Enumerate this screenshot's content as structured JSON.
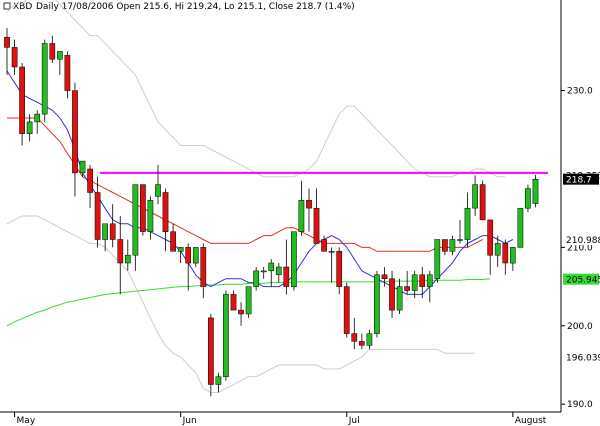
{
  "header": {
    "symbol": "XBD",
    "info": "Daily 17/08/2006 Open 215.6, Hi 219.24, Lo 215.1, Close 218.7 (1.4%)"
  },
  "colors": {
    "up": "#22bb22",
    "down": "#dd1111",
    "ma_fast": "#3333cc",
    "ma_mid": "#dd3322",
    "ma_slow": "#33dd33",
    "band": "#c8c8c8",
    "resistance": "#ff00ff"
  },
  "chart_data": {
    "type": "candlestick",
    "y_axis": {
      "min": 189,
      "max": 239,
      "ticks": [
        "190.0",
        "200.0",
        "210.0",
        "230.0"
      ],
      "tick_values": [
        190,
        200,
        210,
        230
      ],
      "side": "right"
    },
    "x_axis": {
      "labels": [
        "May",
        "Jun",
        "Jul",
        "August"
      ],
      "label_index": [
        1,
        23,
        45,
        67
      ]
    },
    "candles": [
      [
        236.8,
        238,
        232,
        235.5
      ],
      [
        235.5,
        236.5,
        232,
        233
      ],
      [
        233,
        233.5,
        223,
        224.5
      ],
      [
        224.5,
        227,
        223.5,
        226
      ],
      [
        226,
        227.5,
        224.5,
        227
      ],
      [
        227,
        236.5,
        226,
        236
      ],
      [
        236,
        237,
        233.5,
        234
      ],
      [
        234,
        235,
        232,
        235
      ],
      [
        234.5,
        235,
        229,
        230
      ],
      [
        230,
        231,
        216.5,
        219.5
      ],
      [
        219.5,
        221,
        219,
        221
      ],
      [
        220,
        220.5,
        215,
        217
      ],
      [
        217,
        219,
        210,
        211
      ],
      [
        211,
        213,
        209.5,
        213
      ],
      [
        213,
        215.5,
        210,
        211
      ],
      [
        211,
        214,
        204,
        208
      ],
      [
        208,
        211,
        207,
        209
      ],
      [
        209,
        218,
        207,
        218
      ],
      [
        218,
        218,
        211.5,
        212
      ],
      [
        212,
        216.5,
        211,
        216
      ],
      [
        216.5,
        220.5,
        215.5,
        218
      ],
      [
        217,
        217.5,
        209.5,
        212
      ],
      [
        212,
        213,
        210,
        209.5
      ],
      [
        209.5,
        210,
        208,
        210
      ],
      [
        210,
        210.5,
        204.5,
        208
      ],
      [
        208,
        210,
        207.5,
        210
      ],
      [
        210,
        210.5,
        203.5,
        205
      ],
      [
        201,
        201.5,
        191,
        192.5
      ],
      [
        192.5,
        194,
        191.5,
        193.5
      ],
      [
        193.5,
        204.5,
        193,
        204
      ],
      [
        204,
        204.5,
        202,
        202
      ],
      [
        202,
        203,
        200,
        201.5
      ],
      [
        201.5,
        205,
        201,
        205
      ],
      [
        205,
        207.5,
        204.5,
        207
      ],
      [
        207,
        207.5,
        206,
        207
      ],
      [
        207,
        208.5,
        205,
        208
      ],
      [
        206.5,
        208,
        205.5,
        207.5
      ],
      [
        207.5,
        211,
        204,
        205
      ],
      [
        205,
        212,
        204.5,
        212
      ],
      [
        212,
        218.5,
        211.5,
        216
      ],
      [
        216,
        217.5,
        212,
        215
      ],
      [
        215,
        217.5,
        210.5,
        210.5
      ],
      [
        211,
        211.5,
        209.5,
        209.5
      ],
      [
        209.5,
        210,
        205.5,
        209.5
      ],
      [
        209.5,
        210,
        204,
        205
      ],
      [
        205,
        205.5,
        198.5,
        199
      ],
      [
        199,
        201,
        197,
        198
      ],
      [
        198,
        199,
        197,
        197.5
      ],
      [
        197.5,
        199.5,
        197,
        199
      ],
      [
        199,
        207,
        198.5,
        206.5
      ],
      [
        206.5,
        207.5,
        205,
        206
      ],
      [
        206,
        207,
        201,
        202
      ],
      [
        202,
        206,
        201.5,
        205
      ],
      [
        205,
        207,
        204,
        204.5
      ],
      [
        204.5,
        207,
        203.5,
        206.5
      ],
      [
        206.5,
        207.5,
        203.5,
        205
      ],
      [
        205,
        207,
        203,
        206.5
      ],
      [
        206,
        211,
        205.5,
        211
      ],
      [
        211,
        211,
        209,
        209.5
      ],
      [
        209.5,
        211.5,
        209,
        211
      ],
      [
        211,
        213.5,
        210.5,
        211
      ],
      [
        211,
        217,
        210,
        215
      ],
      [
        215,
        219.2,
        214,
        218
      ],
      [
        218,
        218.5,
        214,
        213.5
      ],
      [
        213.5,
        213.5,
        206.5,
        209
      ],
      [
        209,
        211.5,
        207.5,
        210.5
      ],
      [
        210.5,
        211,
        206.5,
        208
      ],
      [
        208,
        210,
        207,
        210
      ],
      [
        210,
        215,
        210,
        215
      ],
      [
        215,
        218,
        214.5,
        217.5
      ],
      [
        215.6,
        219.24,
        215.1,
        218.7
      ]
    ],
    "ma_fast": [
      232.5,
      231,
      229.5,
      229,
      228.5,
      228,
      227.5,
      226.5,
      225,
      222.5,
      219.5,
      218,
      216.5,
      215,
      213.5,
      213,
      213,
      212.5,
      212.5,
      212,
      211.5,
      211,
      210.5,
      209.5,
      208,
      206.5,
      205.5,
      205,
      205.5,
      206,
      206,
      206,
      205.5,
      205.5,
      205,
      205,
      205,
      205.5,
      206.5,
      208,
      209.5,
      210.5,
      211,
      211.5,
      211,
      210,
      208.5,
      207,
      206.5,
      206,
      205.5,
      205,
      204.5,
      204,
      204,
      204,
      205,
      206,
      207,
      208,
      209.5,
      210.5,
      211,
      211.5,
      211.5,
      211,
      210.5,
      211
    ],
    "ma_mid": [
      226.5,
      226.5,
      226.5,
      226.5,
      226.5,
      225.5,
      224.5,
      223.5,
      222,
      220.5,
      219,
      218.5,
      218,
      217.5,
      217,
      216.5,
      216,
      215.5,
      215,
      214.5,
      214,
      213.5,
      213,
      212.5,
      212,
      211.5,
      211,
      210.5,
      210.5,
      210.5,
      210.5,
      210.5,
      210.5,
      211,
      211.5,
      211.5,
      212,
      212.5,
      212.5,
      212,
      211.5,
      211,
      210.5,
      210.5,
      210.5,
      210.5,
      210.5,
      210,
      210,
      209.5,
      209.5,
      209.5,
      209.5,
      209.5,
      209.5,
      209.5,
      209.5,
      210,
      210,
      210,
      210,
      210,
      210.5,
      211
    ],
    "ma_slow": [
      200,
      200.5,
      200.9,
      201.3,
      201.7,
      202,
      202.4,
      202.7,
      203,
      203.2,
      203.4,
      203.6,
      203.8,
      204,
      204.1,
      204.2,
      204.3,
      204.4,
      204.5,
      204.6,
      204.7,
      204.8,
      204.9,
      205,
      205,
      205.1,
      205.1,
      205.2,
      205.2,
      205.3,
      205.3,
      205.3,
      205.4,
      205.4,
      205.4,
      205.5,
      205.5,
      205.5,
      205.6,
      205.6,
      205.6,
      205.6,
      205.6,
      205.6,
      205.6,
      205.6,
      205.6,
      205.6,
      205.6,
      205.6,
      205.6,
      205.7,
      205.7,
      205.7,
      205.7,
      205.7,
      205.8,
      205.8,
      205.8,
      205.8,
      205.8,
      205.9,
      205.9,
      205.9,
      206
    ],
    "band_upper": [
      240,
      241,
      241,
      242,
      242,
      242,
      242,
      241,
      240,
      239,
      238,
      237,
      237,
      236,
      235,
      234,
      233,
      232,
      230,
      228,
      226,
      225,
      224,
      223,
      223,
      223,
      223,
      222.5,
      222,
      221.5,
      221,
      220.5,
      220,
      219.5,
      219,
      219,
      219,
      219,
      219,
      219.5,
      220,
      221,
      223,
      225,
      227,
      228,
      228,
      227,
      226,
      225,
      224,
      223,
      222,
      221,
      220,
      219.5,
      219,
      219,
      219,
      219,
      219.5,
      219.5,
      220,
      220,
      219.5,
      219,
      219
    ],
    "band_lower": [
      213,
      213.5,
      214,
      214,
      214,
      213.5,
      213,
      212.5,
      212,
      211.5,
      211,
      210.5,
      210.5,
      210,
      209,
      208,
      207,
      205,
      203,
      201,
      199,
      197.5,
      196.5,
      196,
      195,
      194,
      192,
      191.5,
      191.5,
      192,
      192.5,
      193,
      193.5,
      193.5,
      194,
      194.5,
      195,
      195,
      195,
      195,
      195,
      195,
      194.5,
      194.5,
      194.5,
      195,
      195.5,
      196,
      197,
      197,
      197,
      197,
      197,
      197,
      197,
      197,
      197,
      197,
      196.5,
      196.5,
      196.5,
      196.5,
      196.5
    ],
    "resistance_level": 219.5,
    "price_tags": [
      {
        "label": "219.253",
        "value": 219.253,
        "color": "#000000",
        "bg": "#ffffff"
      },
      {
        "label": "218.7",
        "value": 218.7,
        "color": "#ffffff",
        "bg": "#000000"
      },
      {
        "label": "210.988",
        "value": 210.988,
        "color": "#000000",
        "bg": "#ffffff"
      },
      {
        "label": "210.0",
        "value": 210.0,
        "color": "#000000",
        "bg": "#ffffff"
      },
      {
        "label": "205.945",
        "value": 205.945,
        "color": "#000000",
        "bg": "#33dd33"
      },
      {
        "label": "196.039",
        "value": 196.039,
        "color": "#000000",
        "bg": "#ffffff"
      }
    ]
  }
}
